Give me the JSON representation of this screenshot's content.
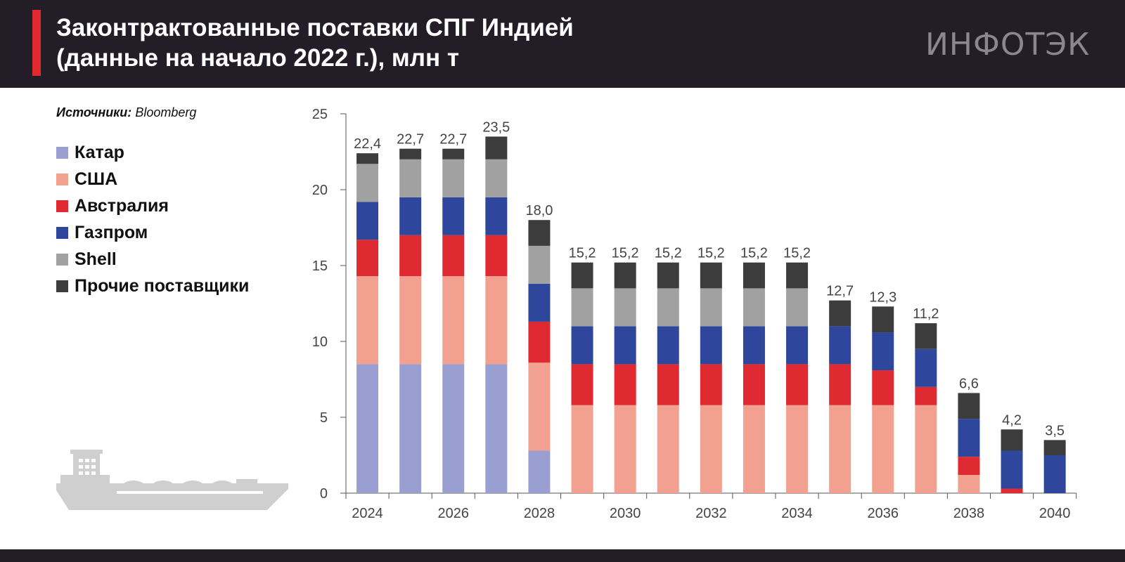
{
  "header": {
    "title_line1": "Законтрактованные поставки СПГ Индией",
    "title_line2": "(данные на начало 2022 г.), млн т",
    "logo": "ИНФОТЭК"
  },
  "source": {
    "label": "Источники:",
    "value": "Bloomberg"
  },
  "colors": {
    "accent": "#e02a2f",
    "header_bg": "#221d26",
    "qatar": "#99a0d1",
    "usa": "#f2a08f",
    "australia": "#e02a31",
    "gazprom": "#2e479c",
    "shell": "#a1a1a1",
    "others": "#3c3c3c"
  },
  "chart_data": {
    "type": "bar",
    "stacked": true,
    "ylim": [
      0,
      25
    ],
    "yticks": [
      0,
      5,
      10,
      15,
      20,
      25
    ],
    "categories": [
      "2024",
      "2025",
      "2026",
      "2027",
      "2028",
      "2029",
      "2030",
      "2031",
      "2032",
      "2033",
      "2034",
      "2035",
      "2036",
      "2037",
      "2038",
      "2039",
      "2040"
    ],
    "xtick_labels": [
      "2024",
      "",
      "2026",
      "",
      "2028",
      "",
      "2030",
      "",
      "2032",
      "",
      "2034",
      "",
      "2036",
      "",
      "2038",
      "",
      "2040"
    ],
    "series": [
      {
        "name": "Катар",
        "color": "#99a0d1",
        "values": [
          8.5,
          8.5,
          8.5,
          8.5,
          2.8,
          0,
          0,
          0,
          0,
          0,
          0,
          0,
          0,
          0,
          0,
          0,
          0
        ]
      },
      {
        "name": "США",
        "color": "#f2a08f",
        "values": [
          5.8,
          5.8,
          5.8,
          5.8,
          5.8,
          5.8,
          5.8,
          5.8,
          5.8,
          5.8,
          5.8,
          5.8,
          5.8,
          5.8,
          1.2,
          0,
          0
        ]
      },
      {
        "name": "Австралия",
        "color": "#e02a31",
        "values": [
          2.4,
          2.7,
          2.7,
          2.7,
          2.7,
          2.7,
          2.7,
          2.7,
          2.7,
          2.7,
          2.7,
          2.7,
          2.3,
          1.2,
          1.2,
          0.3,
          0
        ]
      },
      {
        "name": "Газпром",
        "color": "#2e479c",
        "values": [
          2.5,
          2.5,
          2.5,
          2.5,
          2.5,
          2.5,
          2.5,
          2.5,
          2.5,
          2.5,
          2.5,
          2.5,
          2.5,
          2.5,
          2.5,
          2.5,
          2.5
        ]
      },
      {
        "name": "Shell",
        "color": "#a1a1a1",
        "values": [
          2.5,
          2.5,
          2.5,
          2.5,
          2.5,
          2.5,
          2.5,
          2.5,
          2.5,
          2.5,
          2.5,
          0,
          0,
          0,
          0,
          0,
          0
        ]
      },
      {
        "name": "Прочие поставщики",
        "color": "#3c3c3c",
        "values": [
          0.7,
          0.7,
          0.7,
          1.5,
          1.7,
          1.7,
          1.7,
          1.7,
          1.7,
          1.7,
          1.7,
          1.7,
          1.7,
          1.7,
          1.7,
          1.4,
          1.0
        ]
      }
    ],
    "total_labels": [
      "22,4",
      "22,7",
      "22,7",
      "23,5",
      "18,0",
      "15,2",
      "15,2",
      "15,2",
      "15,2",
      "15,2",
      "15,2",
      "12,7",
      "12,3",
      "11,2",
      "6,6",
      "4,2",
      "3,5"
    ],
    "legend_position": "left",
    "grid": false
  }
}
